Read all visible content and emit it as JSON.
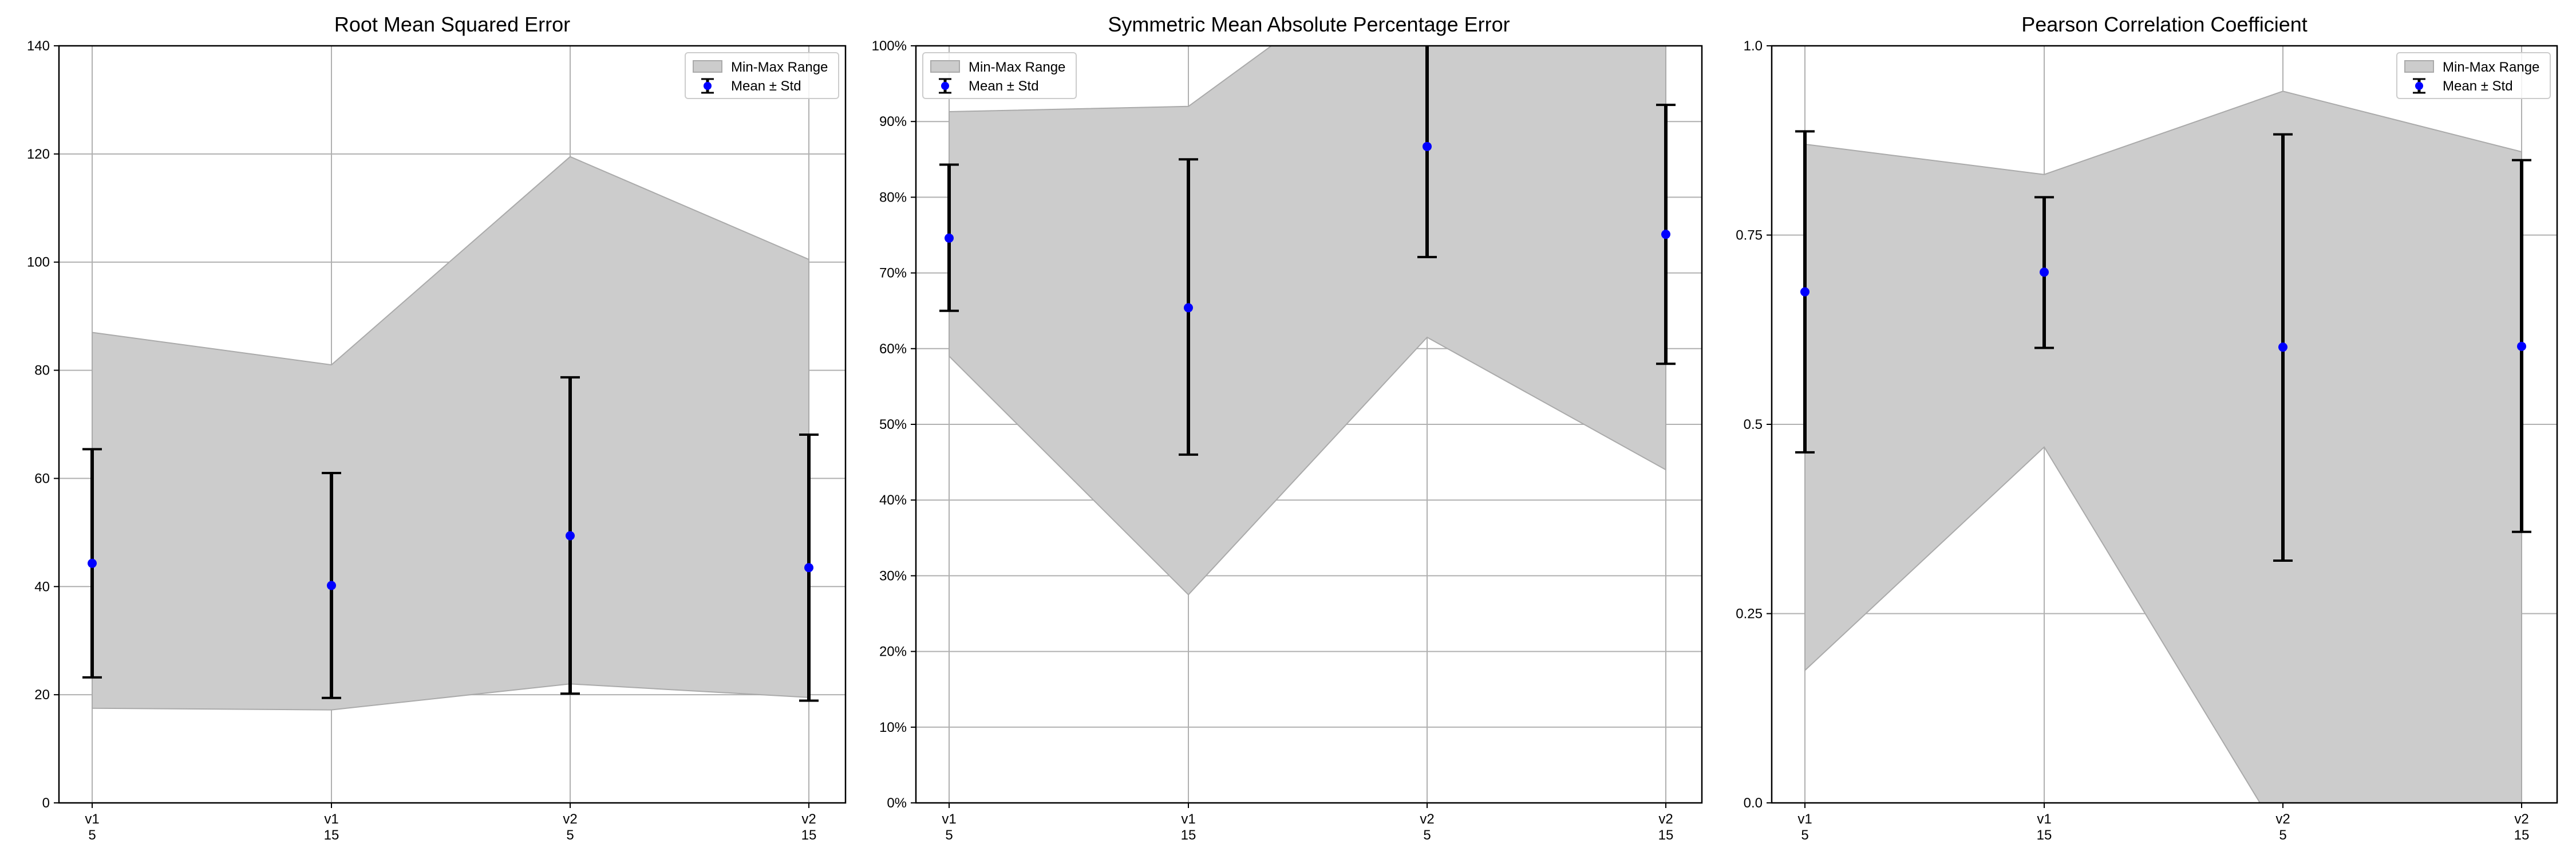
{
  "chart_data": [
    {
      "type": "line",
      "title": "Root Mean Squared Error",
      "categories": [
        [
          "v1",
          "5"
        ],
        [
          "v1",
          "15"
        ],
        [
          "v2",
          "5"
        ],
        [
          "v2",
          "15"
        ]
      ],
      "ylim": [
        0,
        140
      ],
      "yticks": [
        0,
        20,
        40,
        60,
        80,
        100,
        120,
        140
      ],
      "ytick_labels": [
        "0",
        "20",
        "40",
        "60",
        "80",
        "100",
        "120",
        "140"
      ],
      "min_max_range": {
        "name": "Min-Max Range",
        "min": [
          17.5,
          17.2,
          22,
          19.5
        ],
        "max": [
          87,
          81,
          119.5,
          100.5
        ]
      },
      "mean_std": {
        "name": "Mean ± Std",
        "mean": [
          44.3,
          40.2,
          49.4,
          43.5
        ],
        "lower": [
          23.2,
          19.4,
          20.2,
          18.9
        ],
        "upper": [
          65.4,
          61,
          78.7,
          68.1
        ]
      },
      "grid": true,
      "legend": "top-right"
    },
    {
      "type": "line",
      "title": "Symmetric Mean Absolute Percentage Error",
      "categories": [
        [
          "v1",
          "5"
        ],
        [
          "v1",
          "15"
        ],
        [
          "v2",
          "5"
        ],
        [
          "v2",
          "15"
        ]
      ],
      "ylim": [
        0,
        1
      ],
      "yticks": [
        0,
        0.1,
        0.2,
        0.3,
        0.4,
        0.5,
        0.6,
        0.7,
        0.8,
        0.9,
        1
      ],
      "ytick_labels": [
        "0%",
        "10%",
        "20%",
        "30%",
        "40%",
        "50%",
        "60%",
        "70%",
        "80%",
        "90%",
        "100%"
      ],
      "min_max_range": {
        "name": "Min-Max Range",
        "min": [
          0.59,
          0.275,
          0.615,
          0.44
        ],
        "max": [
          0.913,
          0.92,
          1.15,
          1.1
        ]
      },
      "mean_std": {
        "name": "Mean ± Std",
        "mean": [
          0.746,
          0.654,
          0.867,
          0.751
        ],
        "lower": [
          0.65,
          0.46,
          0.721,
          0.58
        ],
        "upper": [
          0.843,
          0.85,
          1.013,
          0.922
        ]
      },
      "grid": true,
      "legend": "top-left"
    },
    {
      "type": "line",
      "title": "Pearson Correlation Coefficient",
      "categories": [
        [
          "v1",
          "5"
        ],
        [
          "v1",
          "15"
        ],
        [
          "v2",
          "5"
        ],
        [
          "v2",
          "15"
        ]
      ],
      "ylim": [
        0,
        1
      ],
      "yticks": [
        0,
        0.25,
        0.5,
        0.75,
        1
      ],
      "ytick_labels": [
        "0.0",
        "0.25",
        "0.5",
        "0.75",
        "1.0"
      ],
      "min_max_range": {
        "name": "Min-Max Range",
        "min": [
          0.175,
          0.47,
          -0.05,
          -0.05
        ],
        "max": [
          0.87,
          0.83,
          0.94,
          0.86
        ]
      },
      "mean_std": {
        "name": "Mean ± Std",
        "mean": [
          0.675,
          0.701,
          0.602,
          0.603
        ],
        "lower": [
          0.463,
          0.601,
          0.32,
          0.358
        ],
        "upper": [
          0.887,
          0.8,
          0.883,
          0.849
        ]
      },
      "grid": true,
      "legend": "top-right"
    }
  ],
  "colors": {
    "band_fill": "#cccccc",
    "band_edge": "#aaaaaa",
    "grid": "#b0b0b0",
    "mean_marker": "#0000ff",
    "errorbar": "#000000"
  }
}
